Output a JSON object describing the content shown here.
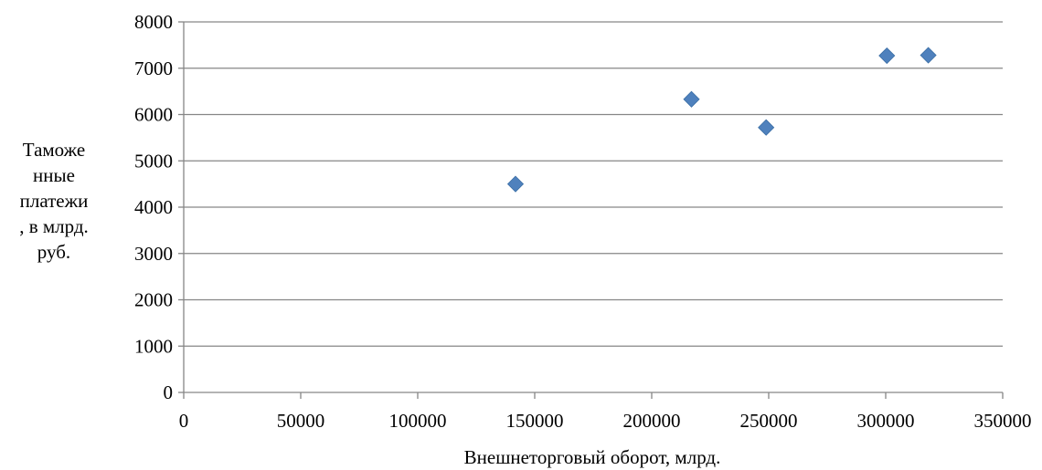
{
  "chart_data": {
    "type": "scatter",
    "title": "",
    "xlabel": "Внешнеторговый оборот, млрд.",
    "ylabel_lines": [
      "Таможе",
      "нные",
      "платежи",
      ", в млрд.",
      "руб."
    ],
    "xlim": [
      0,
      350000
    ],
    "ylim": [
      0,
      8000
    ],
    "xticks": [
      "0",
      "50000",
      "100000",
      "150000",
      "200000",
      "250000",
      "300000",
      "350000"
    ],
    "yticks": [
      "0",
      "1000",
      "2000",
      "3000",
      "4000",
      "5000",
      "6000",
      "7000",
      "8000"
    ],
    "grid": {
      "horizontal": true,
      "vertical": false
    },
    "legend": "none",
    "marker": "diamond",
    "color": "#4F81BD",
    "series": [
      {
        "x": [
          141800,
          217000,
          248900,
          300500,
          318200
        ],
        "y": [
          4500,
          6330,
          5720,
          7270,
          7280
        ]
      }
    ]
  }
}
